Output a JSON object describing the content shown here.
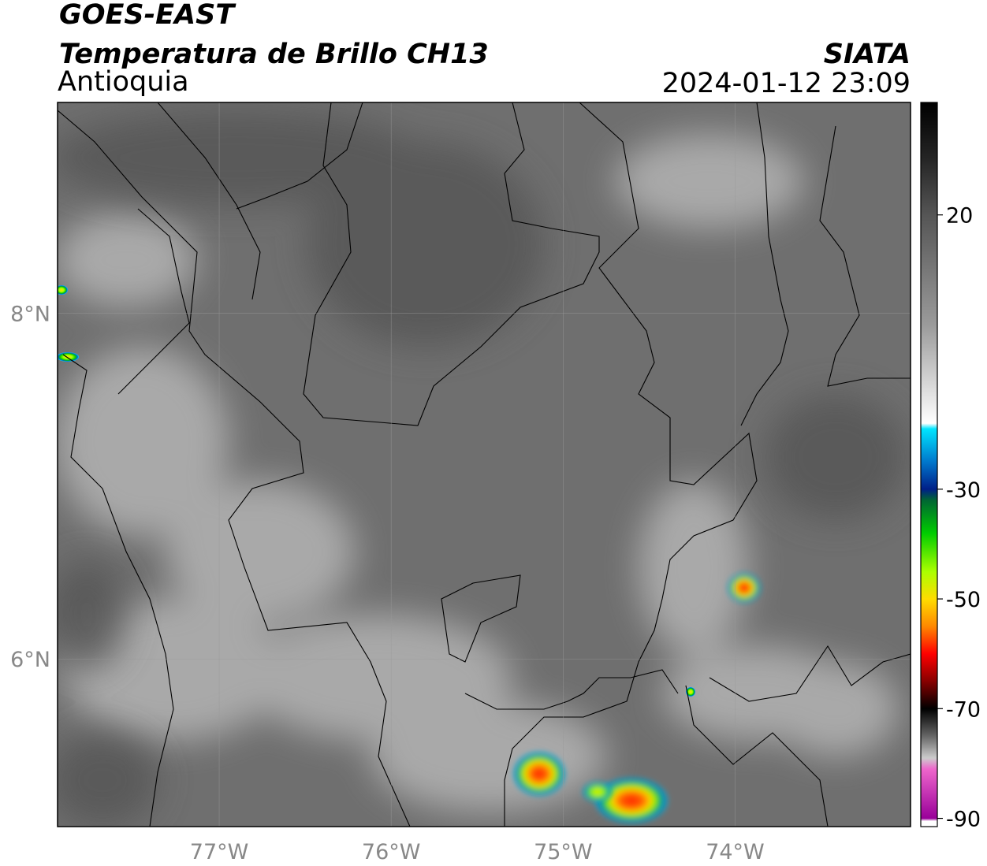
{
  "header": {
    "title": "GOES-EAST",
    "subtitle": "Temperatura de Brillo CH13",
    "region": "Antioquia",
    "source": "SIATA",
    "datetime": "2024-01-12 23:09"
  },
  "map": {
    "lonlim": [
      -77.94,
      -72.98
    ],
    "latlim": [
      5.03,
      9.22
    ],
    "lon_ticks": [
      {
        "value": -77,
        "label": "77°W"
      },
      {
        "value": -76,
        "label": "76°W"
      },
      {
        "value": -75,
        "label": "75°W"
      },
      {
        "value": -74,
        "label": "74°W"
      }
    ],
    "lat_ticks": [
      {
        "value": 8,
        "label": "8°N"
      },
      {
        "value": 6,
        "label": "6°N"
      }
    ],
    "grid": true
  },
  "colorbar": {
    "lim": [
      -91.5,
      40.5
    ],
    "ticks": [
      20,
      -30,
      -50,
      -70,
      -90
    ],
    "colormap": [
      {
        "value": 40.5,
        "color": "#000000"
      },
      {
        "value": 30,
        "color": "#262626"
      },
      {
        "value": 20,
        "color": "#555555"
      },
      {
        "value": 0,
        "color": "#9a9a9a"
      },
      {
        "value": -18,
        "color": "#ffffff"
      },
      {
        "value": -19,
        "color": "#00e5ff"
      },
      {
        "value": -25,
        "color": "#0077cc"
      },
      {
        "value": -30,
        "color": "#001f88"
      },
      {
        "value": -32,
        "color": "#006633"
      },
      {
        "value": -38,
        "color": "#00cc00"
      },
      {
        "value": -45,
        "color": "#aaff00"
      },
      {
        "value": -50,
        "color": "#ffdd00"
      },
      {
        "value": -55,
        "color": "#ff8800"
      },
      {
        "value": -60,
        "color": "#ff0000"
      },
      {
        "value": -65,
        "color": "#880000"
      },
      {
        "value": -70,
        "color": "#000000"
      },
      {
        "value": -75,
        "color": "#666666"
      },
      {
        "value": -79,
        "color": "#cccccc"
      },
      {
        "value": -81,
        "color": "#ee66cc"
      },
      {
        "value": -90,
        "color": "#990099"
      },
      {
        "value": -90.5,
        "color": "#ffffff"
      },
      {
        "value": -91.5,
        "color": "#ffffff"
      }
    ]
  }
}
